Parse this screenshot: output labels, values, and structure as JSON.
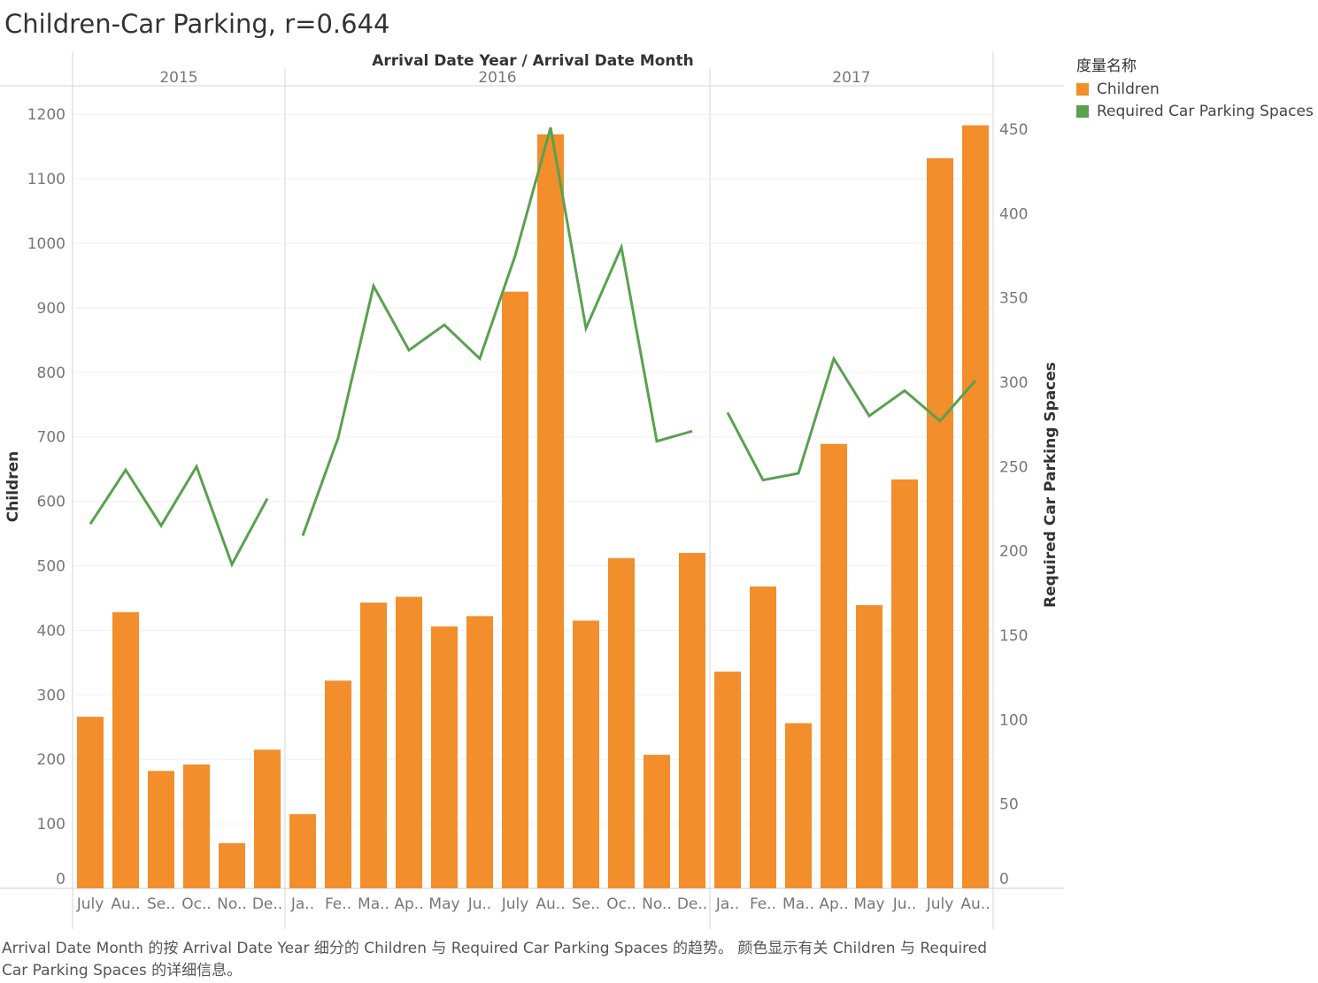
{
  "title": "Children-Car Parking,  r=0.644",
  "caption": "Arrival Date Month 的按 Arrival Date Year 细分的 Children 与 Required Car Parking Spaces 的趋势。 颜色显示有关 Children 与 Required Car Parking Spaces 的详细信息。",
  "legend": {
    "title": "度量名称",
    "items": [
      {
        "label": "Children",
        "color": "#f28e2b"
      },
      {
        "label": "Required Car Parking Spaces",
        "color": "#59a14f"
      }
    ]
  },
  "chart_data": {
    "type": "bar",
    "header_title": "Arrival Date Year / Arrival Date Month",
    "ylabel": "Children",
    "y2label": "Required Car Parking Spaces",
    "ylim": [
      0,
      1200
    ],
    "y2lim": [
      0,
      460
    ],
    "yticks": [
      0,
      100,
      200,
      300,
      400,
      500,
      600,
      700,
      800,
      900,
      1000,
      1100,
      1200
    ],
    "y2ticks": [
      0,
      50,
      100,
      150,
      200,
      250,
      300,
      350,
      400,
      450
    ],
    "grid": true,
    "legend_position": "top-right",
    "years": [
      {
        "label": "2015",
        "count": 6
      },
      {
        "label": "2016",
        "count": 12
      },
      {
        "label": "2017",
        "count": 8
      }
    ],
    "categories": [
      "July",
      "Au..",
      "Se..",
      "Oc..",
      "No..",
      "De..",
      "Ja..",
      "Fe..",
      "Ma..",
      "Ap..",
      "May",
      "Ju..",
      "July",
      "Au..",
      "Se..",
      "Oc..",
      "No..",
      "De..",
      "Ja..",
      "Fe..",
      "Ma..",
      "Ap..",
      "May",
      "Ju..",
      "July",
      "Au.."
    ],
    "series": [
      {
        "name": "Children",
        "type": "bar",
        "axis": "left",
        "values": [
          266,
          428,
          182,
          192,
          70,
          215,
          115,
          322,
          443,
          452,
          406,
          422,
          925,
          1169,
          415,
          512,
          207,
          520,
          336,
          468,
          256,
          689,
          439,
          634,
          1132,
          1183
        ]
      },
      {
        "name": "Required Car Parking Spaces",
        "type": "line",
        "axis": "right",
        "values": [
          216,
          248,
          215,
          250,
          192,
          231,
          209,
          267,
          357,
          319,
          334,
          314,
          375,
          451,
          332,
          380,
          265,
          271,
          282,
          242,
          246,
          314,
          280,
          295,
          277,
          301
        ]
      }
    ]
  }
}
